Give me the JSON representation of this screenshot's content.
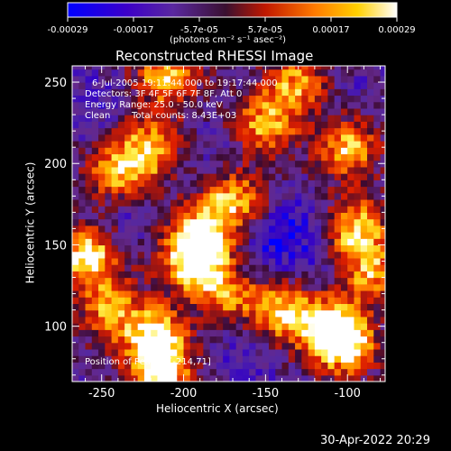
{
  "colorbar": {
    "ticks": [
      "-0.00029",
      "-0.00017",
      "-5.7e-05",
      "5.7e-05",
      "0.00017",
      "0.00029"
    ],
    "unit_label": "(photons cm⁻² s⁻¹ asec⁻²)",
    "colors": [
      "#0000ff",
      "#3c00c8",
      "#5a28a0",
      "#9b1a2d",
      "#e02000",
      "#ff7a00",
      "#ffc000",
      "#ffff80",
      "#ffffff"
    ]
  },
  "title": "Reconstructed RHESSI Image",
  "annotation": {
    "line1": "6-Jul-2005 19:11:44.000 to 19:17:44.000",
    "line2": "Detectors: 3F 4F 5F 6F 7F 8F, Att 0",
    "line3": "Energy Range: 25.0 - 50.0 keV",
    "line4_left": "Clean",
    "line4_right": "Total counts: 8.43E+03",
    "peak": "Position of Peak = [-214,71]"
  },
  "footer_date": "30-Apr-2022 20:29",
  "chart_data": {
    "type": "heatmap",
    "title": "Reconstructed RHESSI Image",
    "xlabel": "Heliocentric X (arcsec)",
    "ylabel": "Heliocentric Y (arcsec)",
    "xlim": [
      -268,
      -77
    ],
    "ylim": [
      66,
      260
    ],
    "xticks": [
      -250,
      -200,
      -150,
      -100
    ],
    "yticks": [
      100,
      150,
      200,
      250
    ],
    "color_range": [
      -0.00029,
      0.00029
    ],
    "grid_step_arcsec": 4,
    "peak_position": [
      -214,
      71
    ],
    "bright_sources": [
      {
        "x": -259,
        "y": 143,
        "level": 0.95
      },
      {
        "x": -214,
        "y": 71,
        "level": 1.0
      },
      {
        "x": -216,
        "y": 95,
        "level": 0.9
      },
      {
        "x": -190,
        "y": 155,
        "level": 0.8
      },
      {
        "x": -195,
        "y": 140,
        "level": 0.75
      },
      {
        "x": -170,
        "y": 178,
        "level": 0.8
      },
      {
        "x": -100,
        "y": 90,
        "level": 0.95
      },
      {
        "x": -112,
        "y": 100,
        "level": 0.85
      },
      {
        "x": -95,
        "y": 160,
        "level": 0.85
      },
      {
        "x": -100,
        "y": 210,
        "level": 0.8
      },
      {
        "x": -210,
        "y": 255,
        "level": 0.85
      },
      {
        "x": -240,
        "y": 195,
        "level": 0.7
      },
      {
        "x": -220,
        "y": 210,
        "level": 0.65
      },
      {
        "x": -140,
        "y": 110,
        "level": 0.75
      },
      {
        "x": -150,
        "y": 225,
        "level": 0.7
      },
      {
        "x": -245,
        "y": 110,
        "level": 0.6
      },
      {
        "x": -175,
        "y": 120,
        "level": 0.6
      },
      {
        "x": -85,
        "y": 130,
        "level": 0.7
      },
      {
        "x": -130,
        "y": 250,
        "level": 0.65
      }
    ],
    "dim_regions": [
      {
        "x": -130,
        "y": 160,
        "level": -0.75
      },
      {
        "x": -150,
        "y": 150,
        "level": -0.7
      },
      {
        "x": -235,
        "y": 170,
        "level": -0.6
      },
      {
        "x": -90,
        "y": 110,
        "level": -0.65
      },
      {
        "x": -180,
        "y": 200,
        "level": -0.55
      },
      {
        "x": -255,
        "y": 235,
        "level": -0.55
      },
      {
        "x": -195,
        "y": 105,
        "level": -0.5
      },
      {
        "x": -120,
        "y": 130,
        "level": -0.5
      },
      {
        "x": -165,
        "y": 85,
        "level": -0.55
      },
      {
        "x": -105,
        "y": 240,
        "level": -0.5
      }
    ]
  }
}
